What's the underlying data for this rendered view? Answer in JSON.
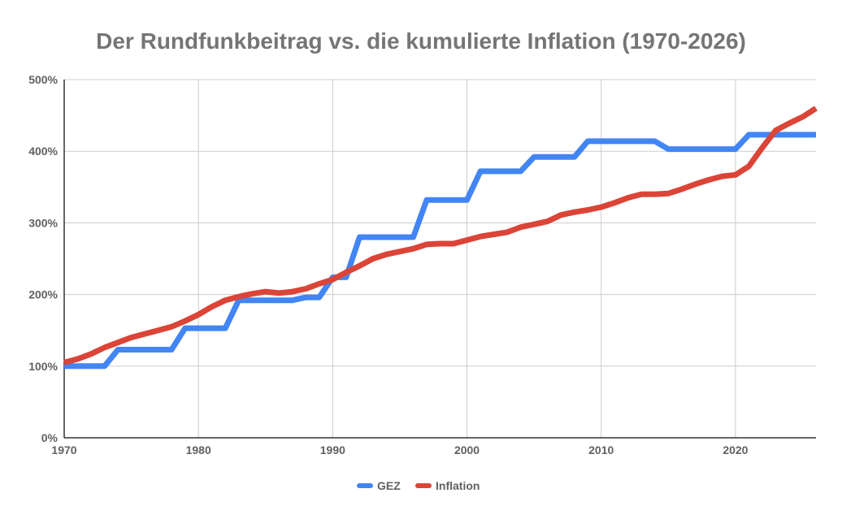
{
  "chart_data": {
    "type": "line",
    "title": "Der Rundfunkbeitrag vs. die kumulierte Inflation (1970-2026)",
    "xlabel": "",
    "ylabel": "",
    "xlim": [
      1970,
      2026
    ],
    "ylim": [
      0,
      500
    ],
    "x_ticks": [
      1970,
      1980,
      1990,
      2000,
      2010,
      2020
    ],
    "x_tick_labels": [
      "1970",
      "1980",
      "1990",
      "2000",
      "2010",
      "2020"
    ],
    "y_ticks": [
      0,
      100,
      200,
      300,
      400,
      500
    ],
    "y_tick_labels": [
      "0%",
      "100%",
      "200%",
      "300%",
      "400%",
      "500%"
    ],
    "grid": true,
    "legend_position": "bottom",
    "x": [
      1970,
      1971,
      1972,
      1973,
      1974,
      1975,
      1976,
      1977,
      1978,
      1979,
      1980,
      1981,
      1982,
      1983,
      1984,
      1985,
      1986,
      1987,
      1988,
      1989,
      1990,
      1991,
      1992,
      1993,
      1994,
      1995,
      1996,
      1997,
      1998,
      1999,
      2000,
      2001,
      2002,
      2003,
      2004,
      2005,
      2006,
      2007,
      2008,
      2009,
      2010,
      2011,
      2012,
      2013,
      2014,
      2015,
      2016,
      2017,
      2018,
      2019,
      2020,
      2021,
      2022,
      2023,
      2024,
      2025,
      2026
    ],
    "series": [
      {
        "name": "GEZ",
        "color": "#4285f4",
        "values": [
          100,
          100,
          100,
          100,
          123,
          123,
          123,
          123,
          123,
          153,
          153,
          153,
          153,
          192,
          192,
          192,
          192,
          192,
          196,
          196,
          224,
          224,
          280,
          280,
          280,
          280,
          280,
          332,
          332,
          332,
          332,
          372,
          372,
          372,
          372,
          392,
          392,
          392,
          392,
          414,
          414,
          414,
          414,
          414,
          414,
          403,
          403,
          403,
          403,
          403,
          403,
          423,
          423,
          423,
          423,
          423,
          423
        ]
      },
      {
        "name": "Inflation",
        "color": "#db4437",
        "values": [
          105,
          110,
          117,
          126,
          133,
          140,
          145,
          150,
          155,
          163,
          172,
          183,
          192,
          197,
          201,
          204,
          202,
          204,
          208,
          215,
          221,
          231,
          240,
          250,
          256,
          260,
          264,
          270,
          271,
          271,
          276,
          281,
          284,
          287,
          294,
          298,
          302,
          311,
          315,
          318,
          322,
          328,
          335,
          340,
          340,
          341,
          347,
          354,
          360,
          365,
          367,
          379,
          405,
          429,
          439,
          448,
          460
        ]
      }
    ]
  }
}
